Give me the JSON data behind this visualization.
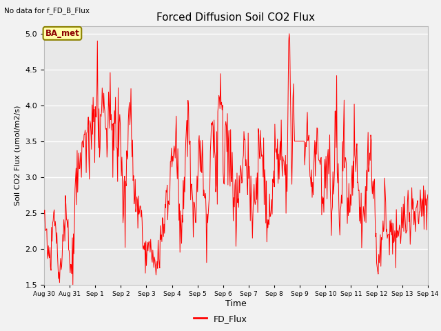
{
  "title": "Forced Diffusion Soil CO2 Flux",
  "xlabel": "Time",
  "ylabel": "Soil CO2 Flux (umol/m2/s)",
  "top_left_text": "No data for f_FD_B_Flux",
  "legend_label": "FD_Flux",
  "annotation_label": "BA_met",
  "line_color": "red",
  "ylim": [
    1.5,
    5.1
  ],
  "plot_bg_color": "#e8e8e8",
  "fig_bg_color": "#f2f2f2",
  "grid_color": "white",
  "x_tick_labels": [
    "Aug 30",
    "Aug 31",
    "Sep 1",
    "Sep 2",
    "Sep 3",
    "Sep 4",
    "Sep 5",
    "Sep 6",
    "Sep 7",
    "Sep 8",
    "Sep 9",
    "Sep 10",
    "Sep 11",
    "Sep 12",
    "Sep 13",
    "Sep 14"
  ]
}
